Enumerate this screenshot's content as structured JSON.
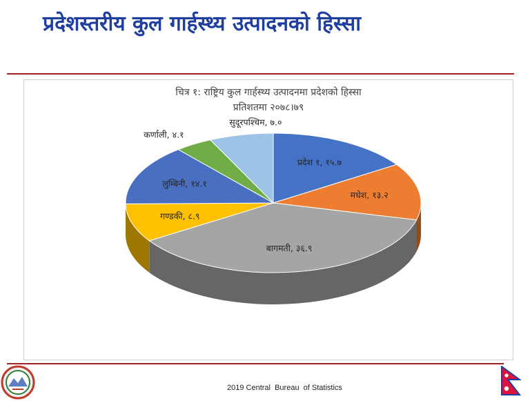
{
  "slide": {
    "title": "प्रदेशस्तरीय कुल गार्हस्थ्य उत्पादनको हिस्सा",
    "footer": "2019 Central  Bureau  of Statistics"
  },
  "colors": {
    "title": "#1f3fa0",
    "rule": "#a32024"
  },
  "chart_data": {
    "type": "pie",
    "style": "3d",
    "title": "चित्र १: राष्ट्रिय कुल गार्हस्थ्य उत्पादनमा प्रदेशको हिस्सा",
    "subtitle": "प्रतिशतमा २०७८।७९",
    "legend": "none",
    "slices": [
      {
        "label": "प्रदेश १, १५.७",
        "name": "प्रदेश १",
        "value": 15.7,
        "color": "#4472c4"
      },
      {
        "label": "मधेश, १३.२",
        "name": "मधेश",
        "value": 13.2,
        "color": "#ed7d31"
      },
      {
        "label": "बागमती, ३६.९",
        "name": "बागमती",
        "value": 36.9,
        "color": "#a5a5a5"
      },
      {
        "label": "गण्डकी, ८.९",
        "name": "गण्डकी",
        "value": 8.9,
        "color": "#ffc000"
      },
      {
        "label": "लुम्बिनी, १४.१",
        "name": "लुम्बिनी",
        "value": 14.1,
        "color": "#4a6fc0"
      },
      {
        "label": "कर्णाली, ४.१",
        "name": "कर्णाली",
        "value": 4.1,
        "color": "#70ad47"
      },
      {
        "label": "सुदूरपश्चिम, ७.०",
        "name": "सुदूरपश्चिम",
        "value": 7.0,
        "color": "#9dc3e6"
      }
    ]
  }
}
